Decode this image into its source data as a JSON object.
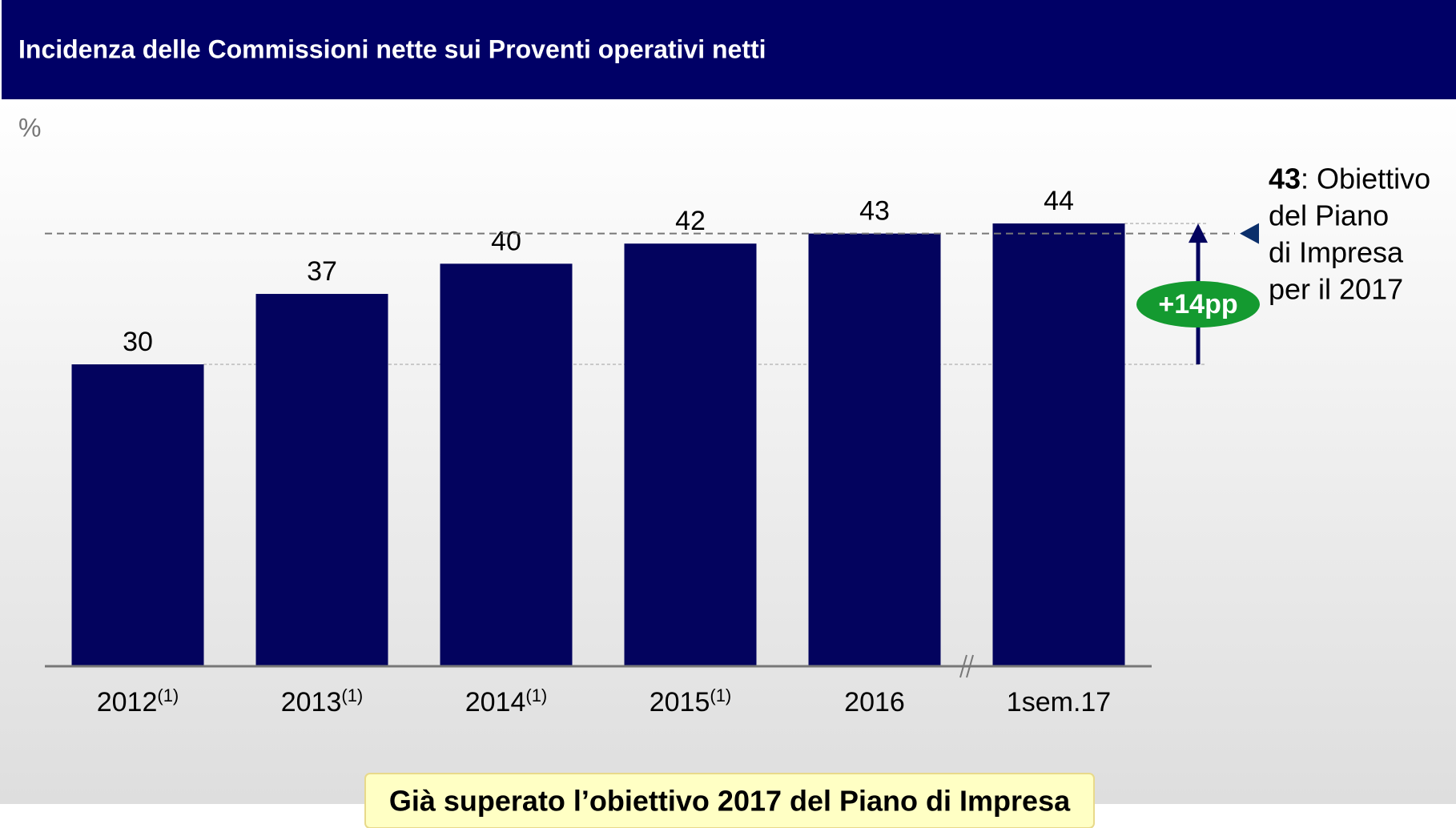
{
  "chart_data": {
    "type": "bar",
    "title": "Incidenza delle Commissioni nette sui Proventi operativi netti",
    "unit_label": "%",
    "categories": [
      "2012",
      "2013",
      "2014",
      "2015",
      "2016",
      "1sem.17"
    ],
    "category_notes": [
      "(1)",
      "(1)",
      "(1)",
      "(1)",
      null,
      null
    ],
    "values": [
      30,
      37,
      40,
      42,
      43,
      44
    ],
    "color": "#03035e",
    "ylim": [
      0,
      60
    ],
    "target": 43,
    "target_text": [
      ": Obiettivo",
      "del Piano",
      "di Impresa",
      "per il 2017"
    ],
    "change_label": "+14pp",
    "change_color": "#149a30",
    "footer": "Già superato l’obiettivo 2017 del Piano di Impresa"
  }
}
